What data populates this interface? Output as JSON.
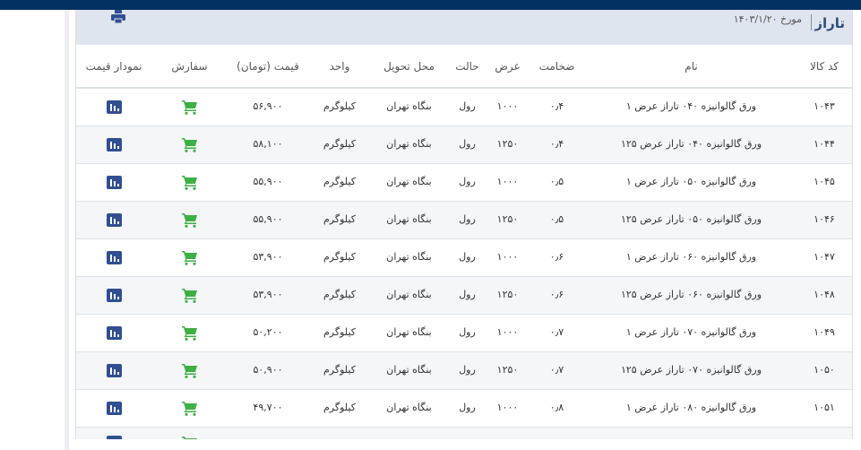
{
  "header": {
    "title": "تاراز",
    "date_label": "مورخ ۱۴۰۳/۱/۲۰",
    "print_icon": "printer-icon"
  },
  "columns": [
    "کد کالا",
    "نام",
    "ضخامت",
    "عرض",
    "حالت",
    "محل تحویل",
    "واحد",
    "قیمت (تومان)",
    "سفارش",
    "نمودار قیمت"
  ],
  "colors": {
    "topbar": "#033161",
    "header_bg": "#dfe5ee",
    "chart_icon": "#2f4f91",
    "cart_icon": "#3cb043"
  },
  "rows": [
    {
      "code": "۱۰۴۳",
      "name": "ورق گالوانیزه ۰۴۰ تاراز عرض ۱",
      "thickness": "۰٫۴",
      "width": "۱۰۰۰",
      "state": "رول",
      "location": "بنگاه تهران",
      "unit": "کیلوگرم",
      "price": "۵۶,۹۰۰"
    },
    {
      "code": "۱۰۴۴",
      "name": "ورق گالوانیزه ۰۴۰ تاراز عرض ۱۲۵",
      "thickness": "۰٫۴",
      "width": "۱۲۵۰",
      "state": "رول",
      "location": "بنگاه تهران",
      "unit": "کیلوگرم",
      "price": "۵۸,۱۰۰"
    },
    {
      "code": "۱۰۴۵",
      "name": "ورق گالوانیزه ۰۵۰ تاراز عرض ۱",
      "thickness": "۰٫۵",
      "width": "۱۰۰۰",
      "state": "رول",
      "location": "بنگاه تهران",
      "unit": "کیلوگرم",
      "price": "۵۵,۹۰۰"
    },
    {
      "code": "۱۰۴۶",
      "name": "ورق گالوانیزه ۰۵۰ تاراز عرض ۱۲۵",
      "thickness": "۰٫۵",
      "width": "۱۲۵۰",
      "state": "رول",
      "location": "بنگاه تهران",
      "unit": "کیلوگرم",
      "price": "۵۵,۹۰۰"
    },
    {
      "code": "۱۰۴۷",
      "name": "ورق گالوانیزه ۰۶۰ تاراز عرض ۱",
      "thickness": "۰٫۶",
      "width": "۱۰۰۰",
      "state": "رول",
      "location": "بنگاه تهران",
      "unit": "کیلوگرم",
      "price": "۵۳,۹۰۰"
    },
    {
      "code": "۱۰۴۸",
      "name": "ورق گالوانیزه ۰۶۰ تاراز عرض ۱۲۵",
      "thickness": "۰٫۶",
      "width": "۱۲۵۰",
      "state": "رول",
      "location": "بنگاه تهران",
      "unit": "کیلوگرم",
      "price": "۵۳,۹۰۰"
    },
    {
      "code": "۱۰۴۹",
      "name": "ورق گالوانیزه ۰۷۰ تاراز عرض ۱",
      "thickness": "۰٫۷",
      "width": "۱۰۰۰",
      "state": "رول",
      "location": "بنگاه تهران",
      "unit": "کیلوگرم",
      "price": "۵۰,۲۰۰"
    },
    {
      "code": "۱۰۵۰",
      "name": "ورق گالوانیزه ۰۷۰ تاراز عرض ۱۲۵",
      "thickness": "۰٫۷",
      "width": "۱۲۵۰",
      "state": "رول",
      "location": "بنگاه تهران",
      "unit": "کیلوگرم",
      "price": "۵۰,۹۰۰"
    },
    {
      "code": "۱۰۵۱",
      "name": "ورق گالوانیزه ۰۸۰ تاراز عرض ۱",
      "thickness": "۰٫۸",
      "width": "۱۰۰۰",
      "state": "رول",
      "location": "بنگاه تهران",
      "unit": "کیلوگرم",
      "price": "۴۹,۷۰۰"
    },
    {
      "code": "",
      "name": "",
      "thickness": "",
      "width": "",
      "state": "",
      "location": "",
      "unit": "",
      "price": ""
    }
  ]
}
